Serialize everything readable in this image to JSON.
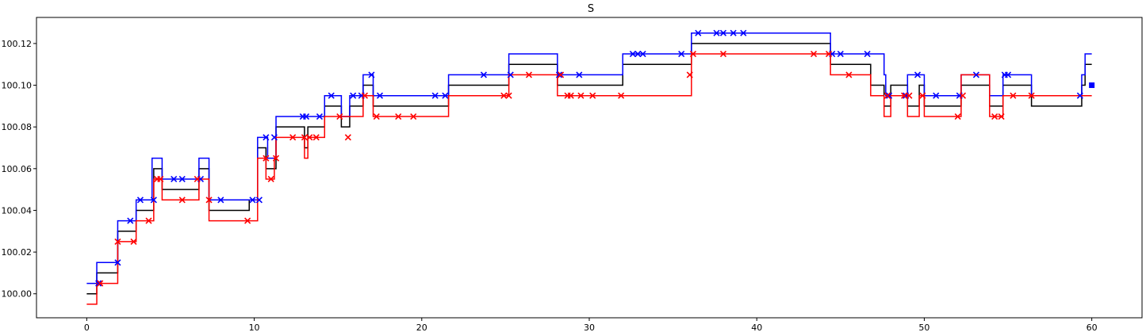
{
  "chart_data": {
    "type": "line",
    "title": "S",
    "xlabel": "",
    "ylabel": "",
    "xlim": [
      -3,
      63
    ],
    "ylim": [
      99.9885,
      100.1325
    ],
    "xticks": [
      0,
      10,
      20,
      30,
      40,
      50,
      60
    ],
    "yticks": [
      100.0,
      100.02,
      100.04,
      100.06,
      100.08,
      100.1,
      100.12
    ],
    "ytick_labels": [
      "100.00",
      "100.02",
      "100.04",
      "100.06",
      "100.08",
      "100.10",
      "100.12"
    ],
    "grid": false,
    "colors": {
      "mid": "#000000",
      "ask": "#0000ff",
      "bid": "#ff0000"
    },
    "series": [
      {
        "role": "mid",
        "style": "step",
        "points": [
          [
            0,
            100.0
          ],
          [
            0.6,
            100.01
          ],
          [
            1.85,
            100.03
          ],
          [
            2.95,
            100.04
          ],
          [
            4.0,
            100.06
          ],
          [
            4.5,
            100.05
          ],
          [
            6.7,
            100.06
          ],
          [
            7.3,
            100.04
          ],
          [
            9.7,
            100.045
          ],
          [
            10.2,
            100.07
          ],
          [
            10.7,
            100.06
          ],
          [
            11.3,
            100.08
          ],
          [
            13.0,
            100.07
          ],
          [
            13.2,
            100.08
          ],
          [
            14.2,
            100.09
          ],
          [
            15.2,
            100.08
          ],
          [
            15.7,
            100.09
          ],
          [
            16.5,
            100.1
          ],
          [
            17.1,
            100.09
          ],
          [
            21.6,
            100.1
          ],
          [
            25.2,
            100.11
          ],
          [
            28.1,
            100.1
          ],
          [
            32.0,
            100.11
          ],
          [
            36.1,
            100.12
          ],
          [
            44.4,
            100.11
          ],
          [
            46.8,
            100.1
          ],
          [
            47.6,
            100.09
          ],
          [
            48.0,
            100.1
          ],
          [
            49.0,
            100.09
          ],
          [
            49.7,
            100.1
          ],
          [
            50.0,
            100.09
          ],
          [
            52.2,
            100.1
          ],
          [
            53.9,
            100.09
          ],
          [
            54.7,
            100.1
          ],
          [
            56.4,
            100.09
          ],
          [
            59.4,
            100.1
          ],
          [
            59.6,
            100.11
          ],
          [
            60.0,
            100.11
          ]
        ]
      },
      {
        "role": "ask",
        "style": "step",
        "points": [
          [
            0,
            100.005
          ],
          [
            0.6,
            100.015
          ],
          [
            1.85,
            100.035
          ],
          [
            2.95,
            100.045
          ],
          [
            3.9,
            100.065
          ],
          [
            4.5,
            100.055
          ],
          [
            6.7,
            100.065
          ],
          [
            7.3,
            100.045
          ],
          [
            9.7,
            100.045
          ],
          [
            10.2,
            100.075
          ],
          [
            10.8,
            100.065
          ],
          [
            11.3,
            100.085
          ],
          [
            14.0,
            100.085
          ],
          [
            14.2,
            100.095
          ],
          [
            15.2,
            100.085
          ],
          [
            15.7,
            100.095
          ],
          [
            16.5,
            100.105
          ],
          [
            17.1,
            100.095
          ],
          [
            21.6,
            100.105
          ],
          [
            25.2,
            100.115
          ],
          [
            28.1,
            100.105
          ],
          [
            32.0,
            100.115
          ],
          [
            36.1,
            100.125
          ],
          [
            43.4,
            100.125
          ],
          [
            44.4,
            100.115
          ],
          [
            45.6,
            100.115
          ],
          [
            47.6,
            100.105
          ],
          [
            47.7,
            100.095
          ],
          [
            48.0,
            100.095
          ],
          [
            49.0,
            100.105
          ],
          [
            49.7,
            100.105
          ],
          [
            50.0,
            100.095
          ],
          [
            52.2,
            100.105
          ],
          [
            53.9,
            100.095
          ],
          [
            54.7,
            100.105
          ],
          [
            56.4,
            100.095
          ],
          [
            59.4,
            100.105
          ],
          [
            59.6,
            100.115
          ],
          [
            60.0,
            100.115
          ]
        ]
      },
      {
        "role": "bid",
        "style": "step",
        "points": [
          [
            0,
            99.995
          ],
          [
            0.6,
            100.005
          ],
          [
            1.85,
            100.025
          ],
          [
            2.95,
            100.035
          ],
          [
            4.0,
            100.055
          ],
          [
            4.5,
            100.045
          ],
          [
            6.7,
            100.055
          ],
          [
            7.3,
            100.035
          ],
          [
            10.2,
            100.065
          ],
          [
            10.7,
            100.055
          ],
          [
            11.2,
            100.065
          ],
          [
            11.3,
            100.075
          ],
          [
            13.0,
            100.065
          ],
          [
            13.2,
            100.075
          ],
          [
            14.2,
            100.085
          ],
          [
            15.7,
            100.085
          ],
          [
            16.5,
            100.095
          ],
          [
            17.1,
            100.085
          ],
          [
            21.6,
            100.095
          ],
          [
            25.2,
            100.105
          ],
          [
            28.1,
            100.095
          ],
          [
            32.0,
            100.095
          ],
          [
            36.1,
            100.115
          ],
          [
            44.4,
            100.105
          ],
          [
            46.8,
            100.095
          ],
          [
            47.6,
            100.085
          ],
          [
            48.0,
            100.095
          ],
          [
            49.0,
            100.085
          ],
          [
            49.7,
            100.095
          ],
          [
            50.0,
            100.085
          ],
          [
            52.2,
            100.105
          ],
          [
            53.9,
            100.085
          ],
          [
            54.7,
            100.095
          ],
          [
            56.4,
            100.095
          ],
          [
            59.4,
            100.095
          ],
          [
            60.0,
            100.095
          ]
        ]
      },
      {
        "role": "ask-trades",
        "style": "markers",
        "marker": "x",
        "points": [
          [
            0.7,
            100.005
          ],
          [
            1.85,
            100.015
          ],
          [
            2.6,
            100.035
          ],
          [
            3.2,
            100.045
          ],
          [
            4.0,
            100.045
          ],
          [
            5.2,
            100.055
          ],
          [
            5.7,
            100.055
          ],
          [
            6.8,
            100.055
          ],
          [
            8.0,
            100.045
          ],
          [
            9.9,
            100.045
          ],
          [
            10.3,
            100.045
          ],
          [
            10.7,
            100.075
          ],
          [
            11.2,
            100.075
          ],
          [
            12.9,
            100.085
          ],
          [
            13.1,
            100.085
          ],
          [
            13.9,
            100.085
          ],
          [
            14.6,
            100.095
          ],
          [
            15.9,
            100.095
          ],
          [
            17.5,
            100.095
          ],
          [
            16.4,
            100.095
          ],
          [
            17.0,
            100.105
          ],
          [
            20.8,
            100.095
          ],
          [
            21.4,
            100.095
          ],
          [
            23.7,
            100.105
          ],
          [
            25.3,
            100.105
          ],
          [
            28.2,
            100.105
          ],
          [
            29.4,
            100.105
          ],
          [
            32.6,
            100.115
          ],
          [
            32.9,
            100.115
          ],
          [
            33.2,
            100.115
          ],
          [
            35.5,
            100.115
          ],
          [
            36.5,
            100.125
          ],
          [
            37.6,
            100.125
          ],
          [
            38.0,
            100.125
          ],
          [
            38.6,
            100.125
          ],
          [
            39.2,
            100.125
          ],
          [
            44.5,
            100.115
          ],
          [
            45.0,
            100.115
          ],
          [
            46.6,
            100.115
          ],
          [
            47.9,
            100.095
          ],
          [
            48.9,
            100.095
          ],
          [
            49.6,
            100.105
          ],
          [
            50.7,
            100.095
          ],
          [
            52.1,
            100.095
          ],
          [
            53.1,
            100.105
          ],
          [
            54.8,
            100.105
          ],
          [
            55.0,
            100.105
          ],
          [
            59.3,
            100.095
          ]
        ]
      },
      {
        "role": "bid-trades",
        "style": "markers",
        "marker": "x",
        "points": [
          [
            0.8,
            100.005
          ],
          [
            1.85,
            100.025
          ],
          [
            2.8,
            100.025
          ],
          [
            3.7,
            100.035
          ],
          [
            4.2,
            100.055
          ],
          [
            4.4,
            100.055
          ],
          [
            5.7,
            100.045
          ],
          [
            6.6,
            100.055
          ],
          [
            7.3,
            100.045
          ],
          [
            9.6,
            100.035
          ],
          [
            10.7,
            100.065
          ],
          [
            11.0,
            100.055
          ],
          [
            11.3,
            100.065
          ],
          [
            12.3,
            100.075
          ],
          [
            13.0,
            100.075
          ],
          [
            13.3,
            100.075
          ],
          [
            13.7,
            100.075
          ],
          [
            15.1,
            100.085
          ],
          [
            15.6,
            100.075
          ],
          [
            16.6,
            100.095
          ],
          [
            17.3,
            100.085
          ],
          [
            18.6,
            100.085
          ],
          [
            19.5,
            100.085
          ],
          [
            24.9,
            100.095
          ],
          [
            25.2,
            100.095
          ],
          [
            26.4,
            100.105
          ],
          [
            28.3,
            100.105
          ],
          [
            28.7,
            100.095
          ],
          [
            28.9,
            100.095
          ],
          [
            29.5,
            100.095
          ],
          [
            30.2,
            100.095
          ],
          [
            31.9,
            100.095
          ],
          [
            36.0,
            100.105
          ],
          [
            36.2,
            100.115
          ],
          [
            38.0,
            100.115
          ],
          [
            43.4,
            100.115
          ],
          [
            44.3,
            100.115
          ],
          [
            45.5,
            100.105
          ],
          [
            47.8,
            100.095
          ],
          [
            48.8,
            100.095
          ],
          [
            49.1,
            100.095
          ],
          [
            49.9,
            100.095
          ],
          [
            52.0,
            100.085
          ],
          [
            52.3,
            100.095
          ],
          [
            54.2,
            100.085
          ],
          [
            54.6,
            100.085
          ],
          [
            55.3,
            100.095
          ],
          [
            56.4,
            100.095
          ]
        ]
      },
      {
        "role": "last-quote",
        "style": "markers",
        "marker": "square",
        "points": [
          [
            60.0,
            100.1
          ]
        ]
      }
    ]
  }
}
